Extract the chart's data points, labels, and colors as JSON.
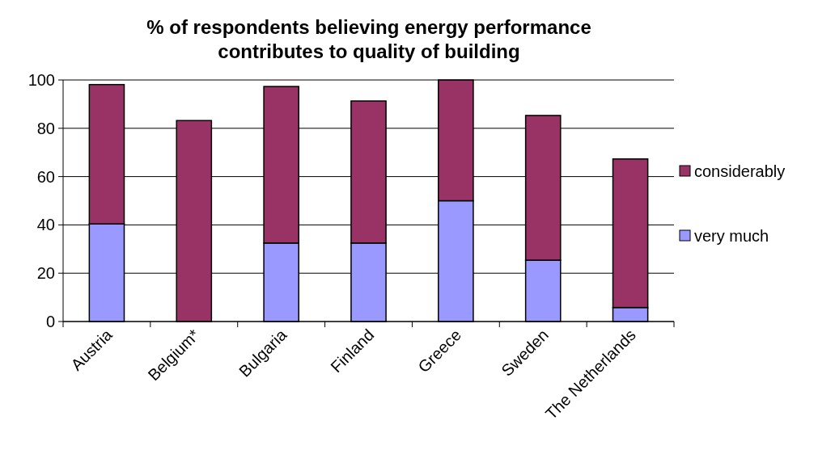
{
  "chart_data": {
    "type": "bar",
    "title": "% of respondents believing energy performance contributes to quality of building",
    "categories": [
      "Austria",
      "Belgium*",
      "Bulgaria",
      "Finland",
      "Greece",
      "Sweden",
      "The Netherlands"
    ],
    "stacked": true,
    "series": [
      {
        "name": "very much",
        "color": "#9999ff",
        "values": [
          40.4,
          0,
          32.5,
          32.5,
          50,
          25.4,
          5.8
        ]
      },
      {
        "name": "considerably",
        "color": "#993366",
        "values": [
          57.7,
          83.2,
          64.8,
          58.8,
          50,
          59.9,
          61.5
        ]
      }
    ],
    "ylim": [
      0,
      100
    ],
    "yticks": [
      0,
      20,
      40,
      60,
      80,
      100
    ],
    "grid": "y",
    "legend": "right"
  }
}
